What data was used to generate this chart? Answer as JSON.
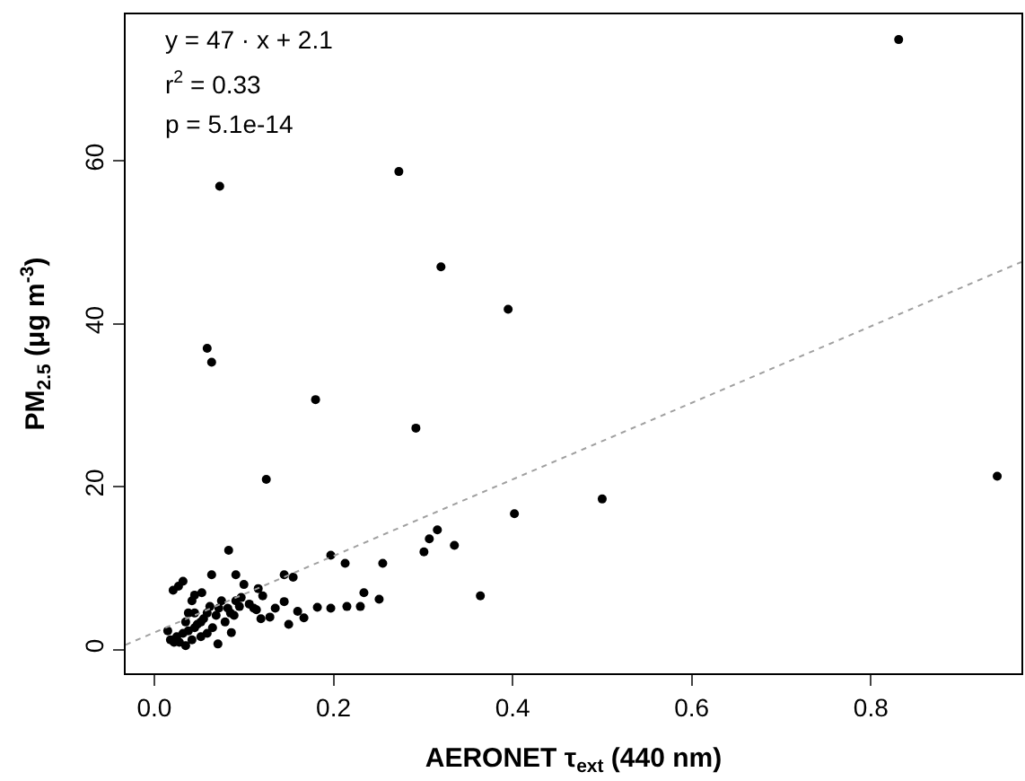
{
  "chart_data": {
    "type": "scatter",
    "xlabel": "AERONET τ$_{ext}$ (440 nm)",
    "ylabel": "PM$_{2.5}$ (μg m$^{-3}$)",
    "annotations": [
      "y = 47 · x + 2.1",
      "r$^{2}$ = 0.33",
      "p = 5.1e-14"
    ],
    "xlim": [
      -0.032,
      0.968
    ],
    "ylim": [
      -2.9,
      78
    ],
    "xticks": [
      {
        "value": 0,
        "label": "0.0"
      },
      0.2,
      0.4,
      0.6,
      0.8
    ],
    "yticks": [
      0,
      20,
      40,
      60
    ],
    "series": [
      {
        "marker": "circle",
        "color": "#000000",
        "x": [
          0.073,
          0.273,
          0.831,
          0.32,
          0.395,
          0.059,
          0.064,
          0.18,
          0.292,
          0.125,
          0.941,
          0.5,
          0.402,
          0.364,
          0.335,
          0.316,
          0.307,
          0.301,
          0.255,
          0.251,
          0.234,
          0.23,
          0.215,
          0.213,
          0.197,
          0.197,
          0.182,
          0.167,
          0.16,
          0.15,
          0.145,
          0.155,
          0.145,
          0.135,
          0.129,
          0.119,
          0.116,
          0.121,
          0.114,
          0.1,
          0.091,
          0.083,
          0.086,
          0.071,
          0.064,
          0.032,
          0.027,
          0.021,
          0.053,
          0.045,
          0.042,
          0.091,
          0.097,
          0.095,
          0.085,
          0.082,
          0.075,
          0.072,
          0.069,
          0.062,
          0.059,
          0.055,
          0.052,
          0.048,
          0.045,
          0.038,
          0.032,
          0.025,
          0.018,
          0.015,
          0.035,
          0.038,
          0.045,
          0.065,
          0.059,
          0.052,
          0.042,
          0.035,
          0.028,
          0.022,
          0.106,
          0.111,
          0.079,
          0.089
        ],
        "values": [
          56.9,
          58.7,
          74.9,
          47.0,
          41.8,
          37.0,
          35.3,
          30.7,
          27.2,
          20.9,
          21.3,
          18.5,
          16.7,
          6.6,
          12.8,
          14.7,
          13.6,
          12.0,
          10.6,
          6.2,
          7.0,
          5.3,
          5.3,
          10.6,
          11.6,
          5.1,
          5.2,
          3.9,
          4.7,
          3.1,
          5.9,
          8.9,
          9.2,
          5.1,
          4.0,
          3.8,
          7.5,
          6.6,
          4.9,
          8.0,
          9.2,
          12.2,
          2.1,
          0.7,
          9.2,
          8.4,
          7.8,
          7.3,
          7.0,
          6.7,
          6.0,
          6.0,
          6.4,
          5.3,
          4.5,
          5.1,
          6.0,
          5.1,
          4.2,
          5.3,
          4.5,
          3.8,
          3.4,
          3.1,
          2.7,
          2.3,
          2.0,
          1.6,
          1.2,
          2.3,
          3.4,
          4.5,
          4.5,
          2.7,
          2.0,
          1.6,
          1.2,
          0.5,
          0.9,
          0.9,
          5.6,
          5.1,
          3.4,
          4.2
        ]
      },
      {
        "type": "line",
        "marker": "none",
        "color": "#a0a0a0",
        "line_style": "dotted",
        "x": [
          -0.032,
          0.968
        ],
        "values": [
          0.6,
          47.6
        ]
      }
    ]
  }
}
